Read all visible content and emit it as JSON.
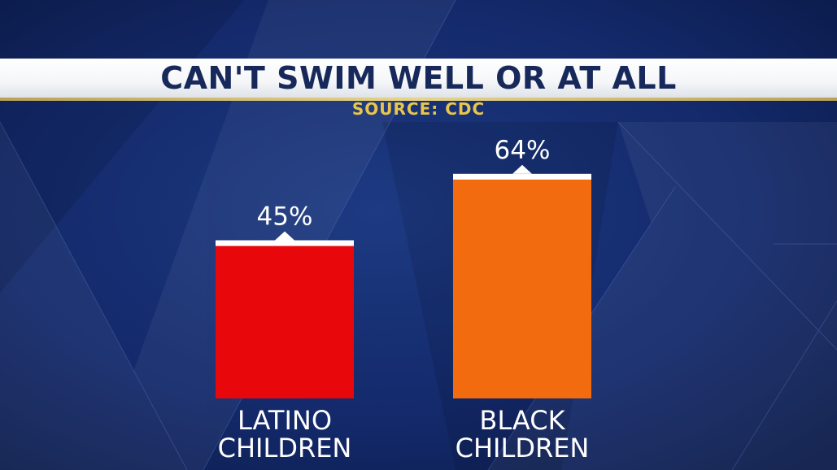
{
  "header": {
    "title": "CAN'T SWIM WELL OR AT ALL",
    "source": "SOURCE: CDC"
  },
  "colors": {
    "background": "#0f2459",
    "latino_bar": "#e8080c",
    "black_bar": "#f26b0f",
    "title_text": "#17285a",
    "source_text": "#e9c64a",
    "label_text": "#ffffff"
  },
  "chart_data": {
    "type": "bar",
    "title": "CAN'T SWIM WELL OR AT ALL",
    "subtitle": "SOURCE: CDC",
    "categories": [
      "LATINO CHILDREN",
      "BLACK CHILDREN"
    ],
    "category_lines": [
      [
        "LATINO",
        "CHILDREN"
      ],
      [
        "BLACK",
        "CHILDREN"
      ]
    ],
    "values": [
      45,
      64
    ],
    "value_labels": [
      "45%",
      "64%"
    ],
    "unit": "%",
    "bar_colors": [
      "#e8080c",
      "#f26b0f"
    ],
    "ylim": [
      0,
      100
    ],
    "grid": false,
    "xlabel": "",
    "ylabel": ""
  }
}
